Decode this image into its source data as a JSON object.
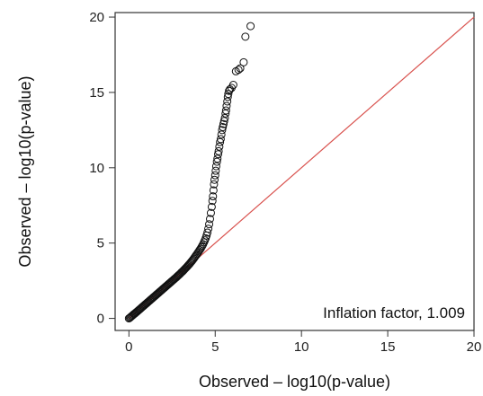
{
  "chart_data": {
    "type": "scatter",
    "title": "",
    "xlabel": "Observed – log10(p-value)",
    "ylabel": "Observed – log10(p-value)",
    "xlim": [
      -0.8,
      20
    ],
    "ylim": [
      -0.8,
      20.3
    ],
    "xticks": [
      0,
      5,
      10,
      15,
      20
    ],
    "yticks": [
      0,
      5,
      10,
      15,
      20
    ],
    "xtick_labels": [
      "0",
      "5",
      "10",
      "15",
      "20"
    ],
    "ytick_labels": [
      "0",
      "5",
      "10",
      "15",
      "20"
    ],
    "grid": false,
    "legend": "none",
    "reference_line": {
      "from": [
        0,
        0
      ],
      "to": [
        20,
        20
      ],
      "color": "#d9534f"
    },
    "annotation": "Inflation factor, 1.009",
    "point_color": "#111111",
    "series": [
      {
        "points": [
          [
            0.0,
            0.0
          ],
          [
            0.05,
            0.04
          ],
          [
            0.1,
            0.09
          ],
          [
            0.15,
            0.14
          ],
          [
            0.2,
            0.19
          ],
          [
            0.25,
            0.24
          ],
          [
            0.3,
            0.29
          ],
          [
            0.35,
            0.33
          ],
          [
            0.4,
            0.38
          ],
          [
            0.45,
            0.43
          ],
          [
            0.5,
            0.48
          ],
          [
            0.55,
            0.53
          ],
          [
            0.6,
            0.58
          ],
          [
            0.65,
            0.63
          ],
          [
            0.7,
            0.68
          ],
          [
            0.75,
            0.73
          ],
          [
            0.8,
            0.78
          ],
          [
            0.85,
            0.83
          ],
          [
            0.9,
            0.88
          ],
          [
            0.95,
            0.93
          ],
          [
            1.0,
            0.98
          ],
          [
            1.05,
            1.03
          ],
          [
            1.1,
            1.08
          ],
          [
            1.15,
            1.13
          ],
          [
            1.2,
            1.18
          ],
          [
            1.25,
            1.23
          ],
          [
            1.3,
            1.28
          ],
          [
            1.35,
            1.33
          ],
          [
            1.4,
            1.38
          ],
          [
            1.45,
            1.43
          ],
          [
            1.5,
            1.48
          ],
          [
            1.55,
            1.53
          ],
          [
            1.6,
            1.58
          ],
          [
            1.65,
            1.63
          ],
          [
            1.7,
            1.68
          ],
          [
            1.75,
            1.73
          ],
          [
            1.8,
            1.78
          ],
          [
            1.85,
            1.83
          ],
          [
            1.9,
            1.88
          ],
          [
            1.95,
            1.93
          ],
          [
            2.0,
            1.98
          ],
          [
            2.05,
            2.03
          ],
          [
            2.1,
            2.08
          ],
          [
            2.15,
            2.13
          ],
          [
            2.2,
            2.18
          ],
          [
            2.25,
            2.23
          ],
          [
            2.3,
            2.28
          ],
          [
            2.35,
            2.33
          ],
          [
            2.4,
            2.38
          ],
          [
            2.45,
            2.43
          ],
          [
            2.5,
            2.48
          ],
          [
            2.55,
            2.53
          ],
          [
            2.6,
            2.58
          ],
          [
            2.65,
            2.63
          ],
          [
            2.7,
            2.68
          ],
          [
            2.75,
            2.73
          ],
          [
            2.8,
            2.79
          ],
          [
            2.85,
            2.84
          ],
          [
            2.9,
            2.89
          ],
          [
            2.95,
            2.94
          ],
          [
            3.0,
            3.0
          ],
          [
            3.05,
            3.06
          ],
          [
            3.1,
            3.11
          ],
          [
            3.15,
            3.17
          ],
          [
            3.2,
            3.23
          ],
          [
            3.25,
            3.29
          ],
          [
            3.3,
            3.35
          ],
          [
            3.35,
            3.41
          ],
          [
            3.4,
            3.47
          ],
          [
            3.45,
            3.54
          ],
          [
            3.5,
            3.6
          ],
          [
            3.55,
            3.67
          ],
          [
            3.6,
            3.74
          ],
          [
            3.65,
            3.81
          ],
          [
            3.7,
            3.88
          ],
          [
            3.75,
            3.96
          ],
          [
            3.8,
            4.04
          ],
          [
            3.85,
            4.12
          ],
          [
            3.9,
            4.2
          ],
          [
            3.95,
            4.28
          ],
          [
            4.0,
            4.37
          ],
          [
            4.05,
            4.45
          ],
          [
            4.1,
            4.54
          ],
          [
            4.15,
            4.62
          ],
          [
            4.2,
            4.72
          ],
          [
            4.25,
            4.82
          ],
          [
            4.3,
            4.92
          ],
          [
            4.35,
            5.05
          ],
          [
            4.4,
            5.18
          ],
          [
            4.45,
            5.32
          ],
          [
            4.5,
            5.5
          ],
          [
            4.55,
            5.7
          ],
          [
            4.6,
            5.95
          ],
          [
            4.65,
            6.25
          ],
          [
            4.7,
            6.6
          ],
          [
            4.75,
            7.0
          ],
          [
            4.8,
            7.4
          ],
          [
            4.84,
            7.8
          ],
          [
            4.87,
            8.1
          ],
          [
            4.9,
            8.5
          ],
          [
            4.93,
            8.9
          ],
          [
            4.96,
            9.2
          ],
          [
            5.0,
            9.5
          ],
          [
            5.03,
            9.8
          ],
          [
            5.06,
            10.1
          ],
          [
            5.1,
            10.4
          ],
          [
            5.13,
            10.6
          ],
          [
            5.17,
            10.9
          ],
          [
            5.2,
            11.1
          ],
          [
            5.24,
            11.4
          ],
          [
            5.28,
            11.7
          ],
          [
            5.32,
            11.9
          ],
          [
            5.36,
            12.2
          ],
          [
            5.4,
            12.5
          ],
          [
            5.44,
            12.7
          ],
          [
            5.48,
            12.9
          ],
          [
            5.52,
            13.1
          ],
          [
            5.56,
            13.3
          ],
          [
            5.6,
            13.6
          ],
          [
            5.63,
            13.8
          ],
          [
            5.66,
            14.1
          ],
          [
            5.7,
            14.4
          ],
          [
            5.73,
            14.7
          ],
          [
            5.76,
            14.9
          ],
          [
            5.8,
            15.1
          ],
          [
            5.85,
            15.2
          ],
          [
            5.95,
            15.3
          ],
          [
            6.05,
            15.5
          ],
          [
            6.2,
            16.4
          ],
          [
            6.35,
            16.5
          ],
          [
            6.45,
            16.6
          ],
          [
            6.65,
            17.0
          ],
          [
            6.75,
            18.7
          ],
          [
            7.05,
            19.4
          ]
        ]
      }
    ]
  }
}
